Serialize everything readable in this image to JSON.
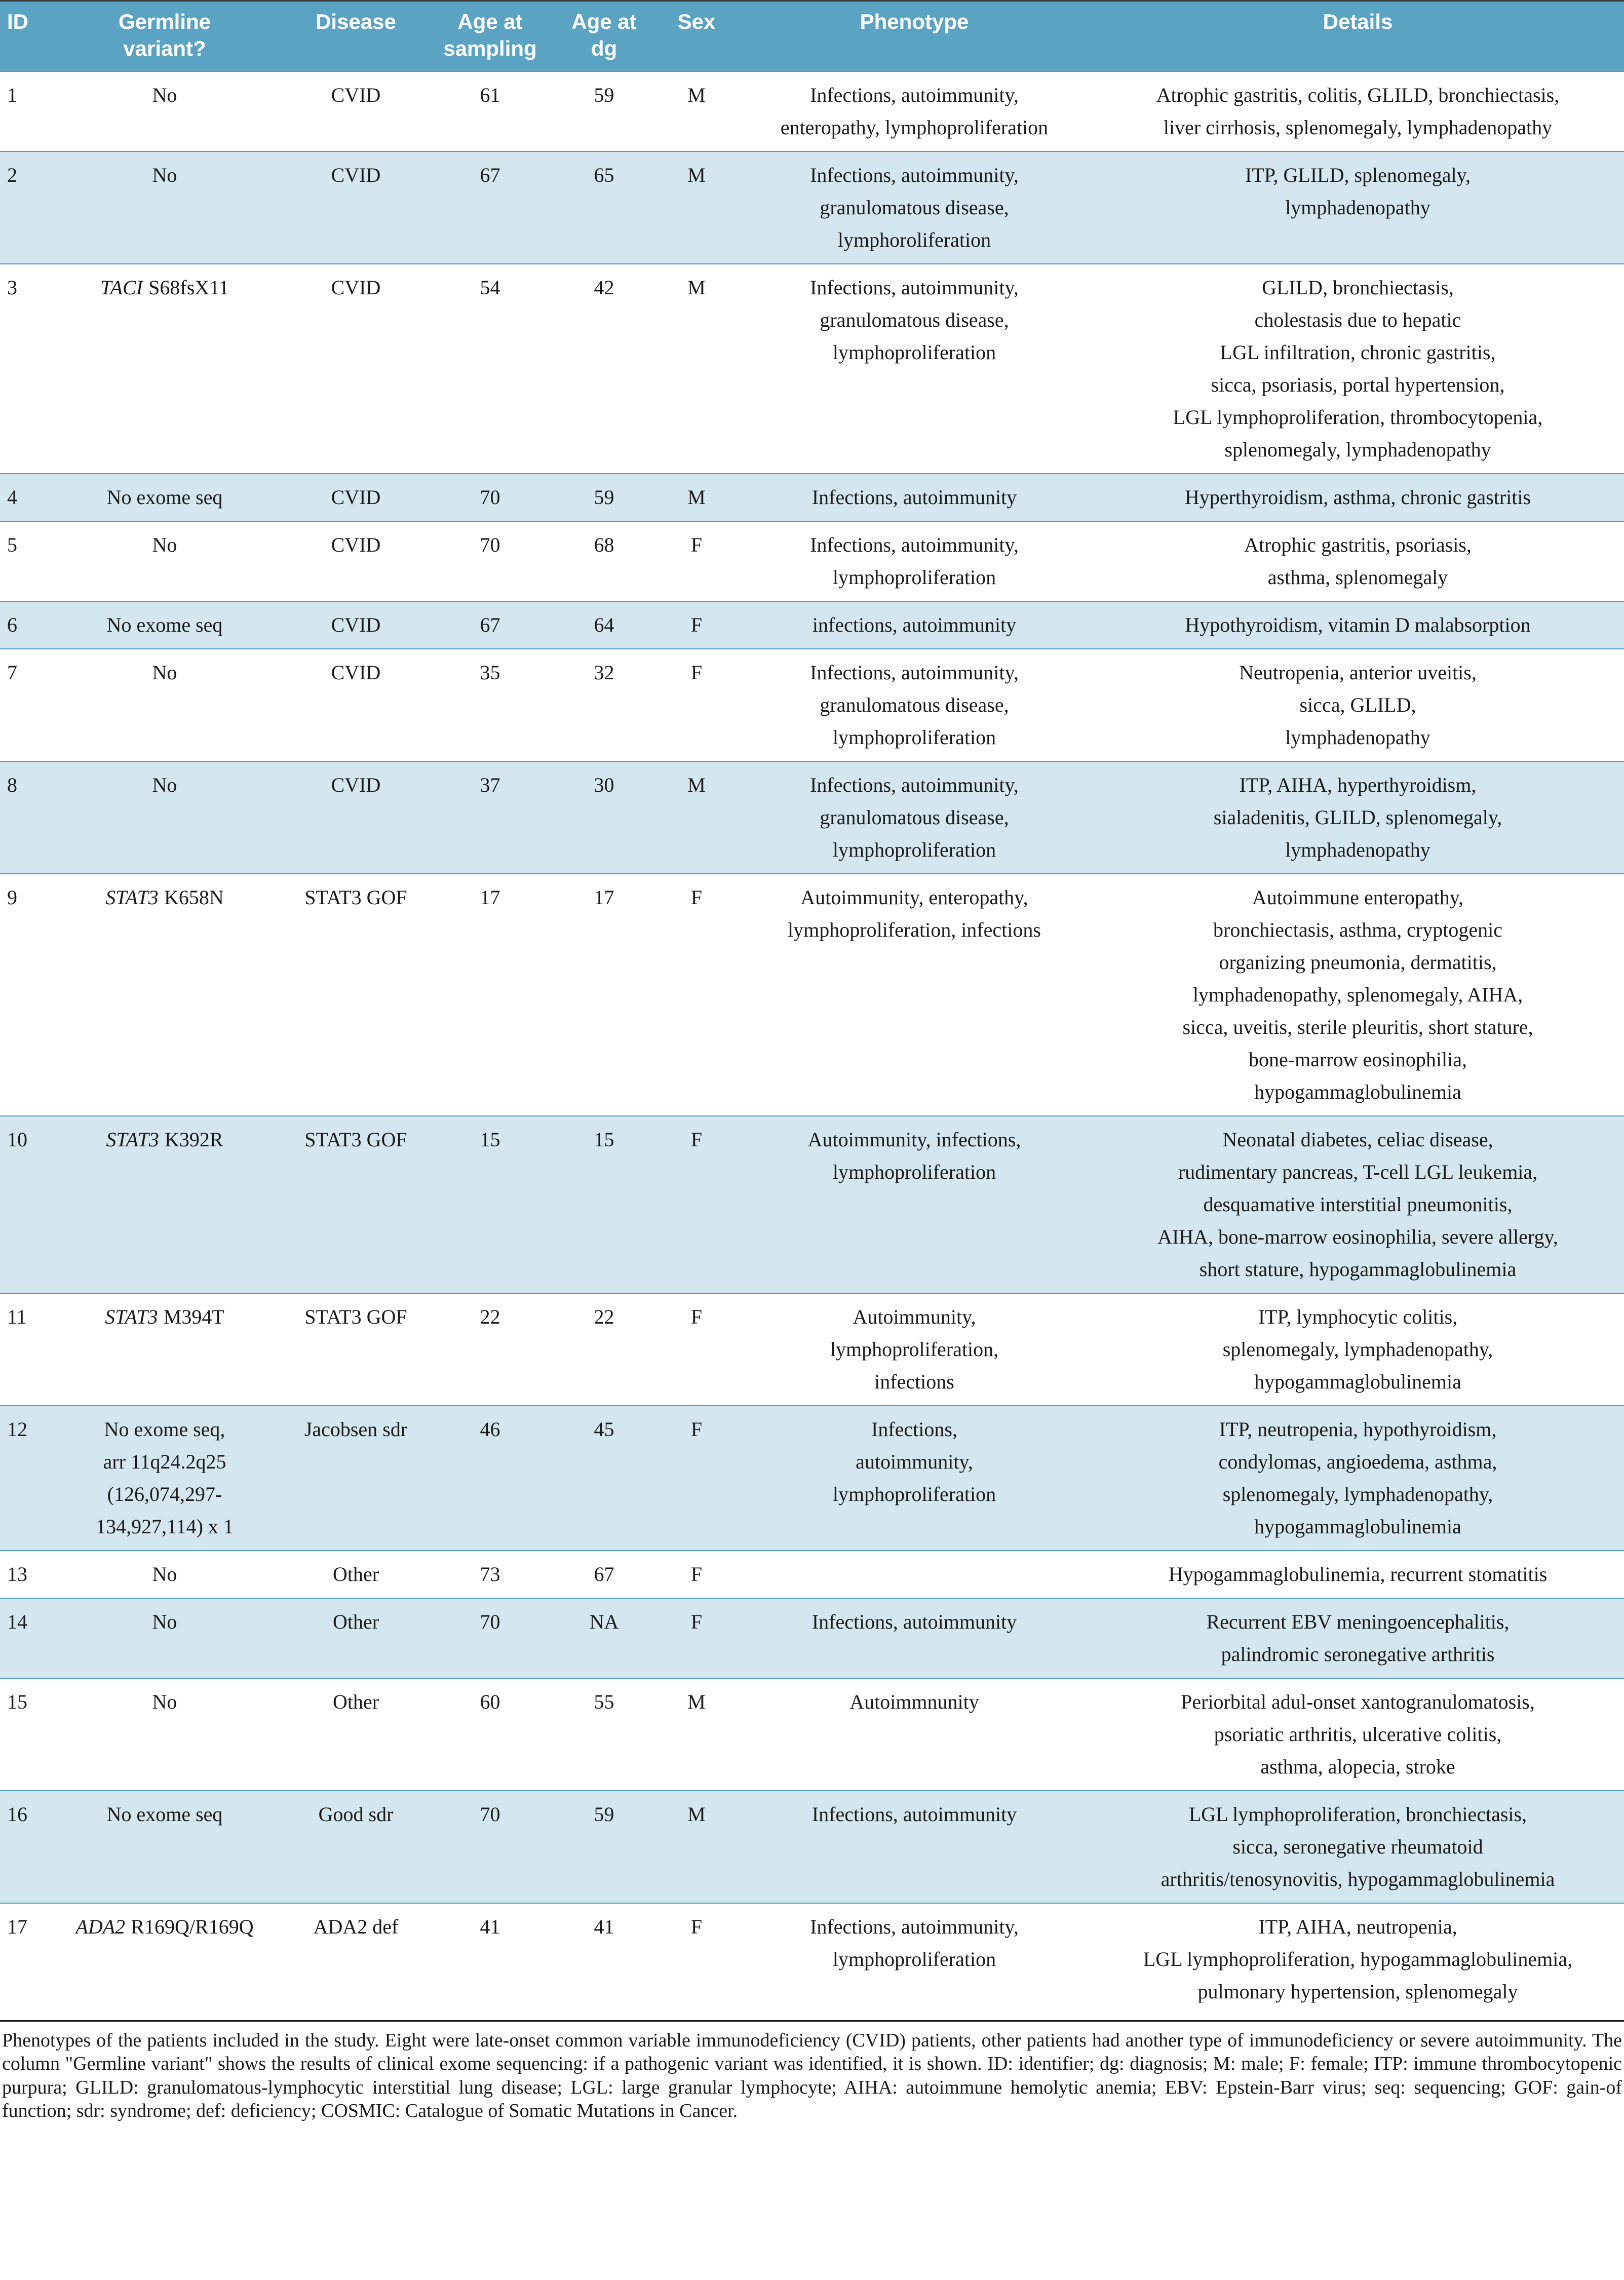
{
  "colors": {
    "header_bg": "#5ba3c2",
    "row_alt_bg": "#d4e7f0",
    "row_divider": "#4e9dc2",
    "text": "#1a1a1a"
  },
  "table": {
    "columns": [
      {
        "key": "id",
        "label": "ID"
      },
      {
        "key": "germline",
        "label": "Germline\nvariant?"
      },
      {
        "key": "disease",
        "label": "Disease"
      },
      {
        "key": "age_sampling",
        "label": "Age at\nsampling"
      },
      {
        "key": "age_dg",
        "label": "Age at\ndg"
      },
      {
        "key": "sex",
        "label": "Sex"
      },
      {
        "key": "phenotype",
        "label": "Phenotype"
      },
      {
        "key": "details",
        "label": "Details"
      }
    ],
    "rows": [
      {
        "id": "1",
        "germline_gene": "",
        "germline_text": "No",
        "disease": "CVID",
        "age_sampling": "61",
        "age_dg": "59",
        "sex": "M",
        "phenotype": "Infections, autoimmunity,\nenteropathy, lymphoproliferation",
        "details": "Atrophic gastritis, colitis, GLILD, bronchiectasis,\nliver cirrhosis, splenomegaly, lymphadenopathy"
      },
      {
        "id": "2",
        "germline_gene": "",
        "germline_text": "No",
        "disease": "CVID",
        "age_sampling": "67",
        "age_dg": "65",
        "sex": "M",
        "phenotype": "Infections, autoimmunity,\ngranulomatous disease,\nlymphoroliferation",
        "details": "ITP, GLILD, splenomegaly,\nlymphadenopathy"
      },
      {
        "id": "3",
        "germline_gene": "TACI",
        "germline_text": "S68fsX11",
        "disease": "CVID",
        "age_sampling": "54",
        "age_dg": "42",
        "sex": "M",
        "phenotype": "Infections, autoimmunity,\ngranulomatous disease,\nlymphoproliferation",
        "details": "GLILD, bronchiectasis,\ncholestasis due to hepatic\nLGL infiltration, chronic gastritis,\nsicca, psoriasis, portal hypertension,\nLGL lymphoproliferation, thrombocytopenia,\nsplenomegaly, lymphadenopathy"
      },
      {
        "id": "4",
        "germline_gene": "",
        "germline_text": "No exome seq",
        "disease": "CVID",
        "age_sampling": "70",
        "age_dg": "59",
        "sex": "M",
        "phenotype": "Infections, autoimmunity",
        "details": "Hyperthyroidism, asthma, chronic gastritis"
      },
      {
        "id": "5",
        "germline_gene": "",
        "germline_text": "No",
        "disease": "CVID",
        "age_sampling": "70",
        "age_dg": "68",
        "sex": "F",
        "phenotype": "Infections, autoimmunity,\nlymphoproliferation",
        "details": "Atrophic gastritis, psoriasis,\nasthma, splenomegaly"
      },
      {
        "id": "6",
        "germline_gene": "",
        "germline_text": "No exome seq",
        "disease": "CVID",
        "age_sampling": "67",
        "age_dg": "64",
        "sex": "F",
        "phenotype": "infections, autoimmunity",
        "details": "Hypothyroidism, vitamin D malabsorption"
      },
      {
        "id": "7",
        "germline_gene": "",
        "germline_text": "No",
        "disease": "CVID",
        "age_sampling": "35",
        "age_dg": "32",
        "sex": "F",
        "phenotype": "Infections, autoimmunity,\ngranulomatous disease,\nlymphoproliferation",
        "details": "Neutropenia, anterior uveitis,\nsicca, GLILD,\nlymphadenopathy"
      },
      {
        "id": "8",
        "germline_gene": "",
        "germline_text": "No",
        "disease": "CVID",
        "age_sampling": "37",
        "age_dg": "30",
        "sex": "M",
        "phenotype": "Infections, autoimmunity,\ngranulomatous disease,\nlymphoproliferation",
        "details": "ITP, AIHA, hyperthyroidism,\nsialadenitis, GLILD, splenomegaly,\nlymphadenopathy"
      },
      {
        "id": "9",
        "germline_gene": "STAT3",
        "germline_text": "K658N",
        "disease": "STAT3 GOF",
        "age_sampling": "17",
        "age_dg": "17",
        "sex": "F",
        "phenotype": "Autoimmunity, enteropathy,\nlymphoproliferation, infections",
        "details": "Autoimmune enteropathy,\nbronchiectasis, asthma, cryptogenic\norganizing pneumonia, dermatitis,\nlymphadenopathy, splenomegaly, AIHA,\nsicca, uveitis, sterile pleuritis, short stature,\nbone-marrow eosinophilia,\nhypogammaglobulinemia"
      },
      {
        "id": "10",
        "germline_gene": "STAT3",
        "germline_text": "K392R",
        "disease": "STAT3 GOF",
        "age_sampling": "15",
        "age_dg": "15",
        "sex": "F",
        "phenotype": "Autoimmunity, infections,\nlymphoproliferation",
        "details": "Neonatal diabetes, celiac disease,\nrudimentary pancreas, T-cell LGL leukemia,\ndesquamative interstitial pneumonitis,\nAIHA, bone-marrow eosinophilia, severe allergy,\nshort stature, hypogammaglobulinemia"
      },
      {
        "id": "11",
        "germline_gene": "STAT3",
        "germline_text": "M394T",
        "disease": "STAT3 GOF",
        "age_sampling": "22",
        "age_dg": "22",
        "sex": "F",
        "phenotype": "Autoimmunity,\nlymphoproliferation,\ninfections",
        "details": "ITP, lymphocytic colitis,\nsplenomegaly, lymphadenopathy,\nhypogammaglobulinemia"
      },
      {
        "id": "12",
        "germline_gene": "",
        "germline_text": "No exome seq,\narr 11q24.2q25\n(126,074,297-\n134,927,114) x 1",
        "disease": "Jacobsen sdr",
        "age_sampling": "46",
        "age_dg": "45",
        "sex": "F",
        "phenotype": "Infections,\nautoimmunity,\nlymphoproliferation",
        "details": "ITP, neutropenia, hypothyroidism,\ncondylomas, angioedema, asthma,\nsplenomegaly, lymphadenopathy,\nhypogammaglobulinemia"
      },
      {
        "id": "13",
        "germline_gene": "",
        "germline_text": "No",
        "disease": "Other",
        "age_sampling": "73",
        "age_dg": "67",
        "sex": "F",
        "phenotype": "",
        "details": "Hypogammaglobulinemia, recurrent stomatitis"
      },
      {
        "id": "14",
        "germline_gene": "",
        "germline_text": "No",
        "disease": "Other",
        "age_sampling": "70",
        "age_dg": "NA",
        "sex": "F",
        "phenotype": "Infections, autoimmunity",
        "details": "Recurrent EBV meningoencephalitis,\npalindromic seronegative arthritis"
      },
      {
        "id": "15",
        "germline_gene": "",
        "germline_text": "No",
        "disease": "Other",
        "age_sampling": "60",
        "age_dg": "55",
        "sex": "M",
        "phenotype": "Autoimmnunity",
        "details": "Periorbital adul-onset xantogranulomatosis,\npsoriatic arthritis, ulcerative colitis,\nasthma, alopecia, stroke"
      },
      {
        "id": "16",
        "germline_gene": "",
        "germline_text": "No exome seq",
        "disease": "Good sdr",
        "age_sampling": "70",
        "age_dg": "59",
        "sex": "M",
        "phenotype": "Infections, autoimmunity",
        "details": "LGL lymphoproliferation, bronchiectasis,\nsicca, seronegative rheumatoid\narthritis/tenosynovitis, hypogammaglobulinemia"
      },
      {
        "id": "17",
        "germline_gene": "ADA2",
        "germline_text": "R169Q/R169Q",
        "disease": "ADA2 def",
        "age_sampling": "41",
        "age_dg": "41",
        "sex": "F",
        "phenotype": "Infections, autoimmunity,\nlymphoproliferation",
        "details": "ITP, AIHA, neutropenia,\nLGL lymphoproliferation, hypogammaglobulinemia,\npulmonary hypertension, splenomegaly"
      }
    ]
  },
  "caption": "Phenotypes of the patients included in the study. Eight were late-onset common variable immunodeficiency (CVID) patients, other patients had another type of immunodeficiency or severe autoimmunity. The column \"Germline variant\" shows the results of clinical exome sequencing: if a pathogenic variant was identified, it is shown. ID: identifier; dg: diagnosis; M: male; F: female; ITP: immune thrombocytopenic purpura; GLILD: granulomatous-lymphocytic interstitial lung disease; LGL: large granular lymphocyte; AIHA: autoimmune hemolytic anemia; EBV: Epstein-Barr virus; seq: sequencing; GOF: gain-of function; sdr: syndrome; def: deficiency; COSMIC: Catalogue of Somatic Mutations in Cancer."
}
